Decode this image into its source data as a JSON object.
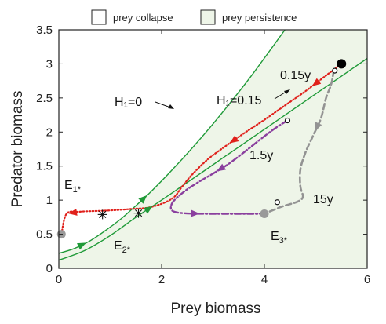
{
  "chart_data": {
    "type": "line",
    "xlabel": "Prey biomass",
    "ylabel": "Predator biomass",
    "xlim": [
      0,
      6
    ],
    "ylim": [
      0,
      3.5
    ],
    "x_ticks": [
      0,
      2,
      4,
      6
    ],
    "y_ticks": [
      0,
      0.5,
      1,
      1.5,
      2,
      2.5,
      3,
      3.5
    ],
    "legend": [
      {
        "label": "prey collapse",
        "color": "#ffffff"
      },
      {
        "label": "prey persistence",
        "color": "#eef5e8"
      }
    ],
    "colors": {
      "boundary": "#1f9a38",
      "red_path": "#e0201b",
      "purple_path": "#8a3f9e",
      "gray_path": "#939393",
      "start_point": "#000000",
      "equilibria": "#999999",
      "region_fill": "#eef5e8"
    },
    "series": [
      {
        "name": "H1=0",
        "style": "green-solid",
        "x": [
          0,
          0.3,
          0.6,
          0.9,
          1.2,
          1.5,
          1.8,
          2.2,
          2.6,
          3.0,
          3.4,
          3.8,
          4.4
        ],
        "y": [
          0.22,
          0.29,
          0.4,
          0.55,
          0.72,
          0.92,
          1.13,
          1.44,
          1.77,
          2.12,
          2.49,
          2.88,
          3.5
        ]
      },
      {
        "name": "H1=0.15",
        "style": "green-solid",
        "x": [
          0,
          0.5,
          1.0,
          1.5,
          2.0,
          2.5,
          3.0,
          3.5,
          4.0,
          4.5,
          5.0,
          5.5,
          6.0
        ],
        "y": [
          0.12,
          0.26,
          0.48,
          0.75,
          1.0,
          1.26,
          1.52,
          1.78,
          2.04,
          2.3,
          2.56,
          2.82,
          3.08
        ]
      },
      {
        "name": "",
        "style": "red-dotted",
        "x": [
          5.5,
          5.2,
          4.8,
          4.4,
          4.0,
          3.6,
          3.2,
          2.9,
          2.6,
          2.4,
          2.2,
          1.8,
          1.4,
          1.0,
          0.7,
          0.4,
          0.15,
          0.05
        ],
        "y": [
          3.0,
          2.83,
          2.6,
          2.39,
          2.18,
          1.98,
          1.77,
          1.6,
          1.38,
          1.2,
          1.02,
          0.9,
          0.87,
          0.85,
          0.84,
          0.83,
          0.8,
          0.5
        ]
      },
      {
        "name": "",
        "style": "purple-dashdot",
        "x": [
          4.45,
          4.2,
          3.9,
          3.6,
          3.3,
          3.0,
          2.75,
          2.5,
          2.32,
          2.2,
          2.2,
          2.4,
          2.9,
          3.4,
          3.8,
          4.0
        ],
        "y": [
          2.17,
          2.05,
          1.88,
          1.7,
          1.53,
          1.39,
          1.28,
          1.16,
          1.05,
          0.95,
          0.85,
          0.81,
          0.8,
          0.8,
          0.8,
          0.8
        ]
      },
      {
        "name": "",
        "style": "gray-dashed",
        "x": [
          5.35,
          5.3,
          5.2,
          5.1,
          4.95,
          4.8,
          4.7,
          4.7,
          4.75,
          4.65,
          4.4,
          4.25,
          4.0
        ],
        "y": [
          2.9,
          2.7,
          2.5,
          2.2,
          1.95,
          1.7,
          1.45,
          1.2,
          1.05,
          0.98,
          0.92,
          0.88,
          0.8
        ]
      }
    ],
    "points": [
      {
        "name": "start",
        "x": 5.5,
        "y": 3.0,
        "style": "filled-black"
      },
      {
        "name": "E1*",
        "x": 0.05,
        "y": 0.5,
        "style": "filled-gray"
      },
      {
        "name": "E3*",
        "x": 4.0,
        "y": 0.8,
        "style": "filled-gray"
      },
      {
        "name": "saddle-1",
        "x": 0.85,
        "y": 0.79,
        "style": "asterisk"
      },
      {
        "name": "saddle-2",
        "x": 1.55,
        "y": 0.81,
        "style": "asterisk"
      },
      {
        "name": "t-0.15y",
        "x": 5.37,
        "y": 2.9,
        "style": "open-circle"
      },
      {
        "name": "t-1.5y",
        "x": 4.45,
        "y": 2.17,
        "style": "open-circle"
      },
      {
        "name": "t-15y",
        "x": 4.25,
        "y": 0.97,
        "style": "open-circle"
      }
    ],
    "annotations": {
      "h1_zero": "H₁=0",
      "h1_015": "H₁=0.15",
      "t1": "0.15y",
      "t2": "1.5y",
      "t3": "15y",
      "e1": "E1*",
      "e2": "E2*",
      "e3": "E3*"
    }
  }
}
